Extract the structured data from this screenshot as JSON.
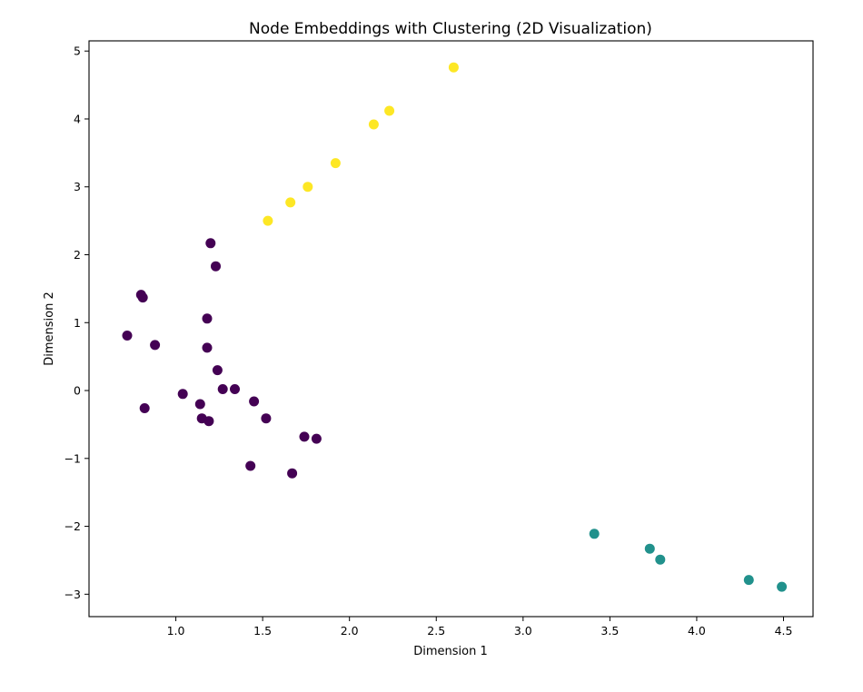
{
  "chart_data": {
    "type": "scatter",
    "title": "Node Embeddings with Clustering (2D Visualization)",
    "xlabel": "Dimension 1",
    "ylabel": "Dimension 2",
    "xlim": [
      0.5,
      4.67
    ],
    "ylim": [
      -3.33,
      5.15
    ],
    "xticks": [
      1.0,
      1.5,
      2.0,
      2.5,
      3.0,
      3.5,
      4.0,
      4.5
    ],
    "xtick_labels": [
      "1.0",
      "1.5",
      "2.0",
      "2.5",
      "3.0",
      "3.5",
      "4.0",
      "4.5"
    ],
    "yticks": [
      -3,
      -2,
      -1,
      0,
      1,
      2,
      3,
      4,
      5
    ],
    "ytick_labels": [
      "−3",
      "−2",
      "−1",
      "0",
      "1",
      "2",
      "3",
      "4",
      "5"
    ],
    "grid": false,
    "legend": false,
    "colormap": "viridis",
    "series": [
      {
        "cluster": 0,
        "color": "#440154",
        "points": [
          [
            1.2,
            2.17
          ],
          [
            1.23,
            1.83
          ],
          [
            0.8,
            1.41
          ],
          [
            0.81,
            1.37
          ],
          [
            1.18,
            1.06
          ],
          [
            0.72,
            0.81
          ],
          [
            0.88,
            0.67
          ],
          [
            1.18,
            0.63
          ],
          [
            1.24,
            0.3
          ],
          [
            1.27,
            0.02
          ],
          [
            1.34,
            0.02
          ],
          [
            1.04,
            -0.05
          ],
          [
            1.45,
            -0.16
          ],
          [
            1.14,
            -0.2
          ],
          [
            0.82,
            -0.26
          ],
          [
            1.15,
            -0.41
          ],
          [
            1.19,
            -0.45
          ],
          [
            1.52,
            -0.41
          ],
          [
            1.74,
            -0.68
          ],
          [
            1.81,
            -0.71
          ],
          [
            1.43,
            -1.11
          ],
          [
            1.67,
            -1.22
          ]
        ]
      },
      {
        "cluster": 1,
        "color": "#21918c",
        "points": [
          [
            3.41,
            -2.11
          ],
          [
            3.73,
            -2.33
          ],
          [
            3.79,
            -2.49
          ],
          [
            4.3,
            -2.79
          ],
          [
            4.49,
            -2.89
          ]
        ]
      },
      {
        "cluster": 2,
        "color": "#fde725",
        "points": [
          [
            1.53,
            2.5
          ],
          [
            1.66,
            2.77
          ],
          [
            1.76,
            3.0
          ],
          [
            1.92,
            3.35
          ],
          [
            2.14,
            3.92
          ],
          [
            2.23,
            4.12
          ],
          [
            2.6,
            4.76
          ]
        ]
      }
    ]
  }
}
